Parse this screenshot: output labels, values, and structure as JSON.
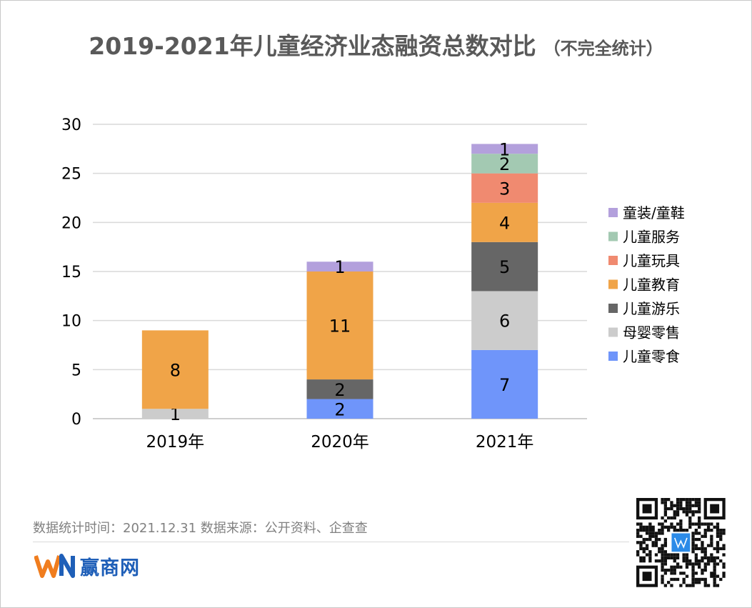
{
  "title": {
    "main": "2019-2021年儿童经济业态融资总数对比",
    "sub": "（不完全统计）"
  },
  "chart_data": {
    "type": "bar",
    "stacked": true,
    "categories": [
      "2019年",
      "2020年",
      "2021年"
    ],
    "ylim": [
      0,
      30
    ],
    "yticks": [
      0,
      5,
      10,
      15,
      20,
      25,
      30
    ],
    "grid": true,
    "legend_position": "right",
    "series": [
      {
        "name": "儿童零食",
        "color": "#6f95fa",
        "values": [
          0,
          2,
          7
        ]
      },
      {
        "name": "母婴零售",
        "color": "#cccccc",
        "values": [
          1,
          0,
          6
        ]
      },
      {
        "name": "儿童游乐",
        "color": "#666666",
        "values": [
          0,
          2,
          5
        ]
      },
      {
        "name": "儿童教育",
        "color": "#f0a448",
        "values": [
          8,
          11,
          4
        ]
      },
      {
        "name": "儿童玩具",
        "color": "#f08a70",
        "values": [
          0,
          0,
          3
        ]
      },
      {
        "name": "儿童服务",
        "color": "#a3c9b2",
        "values": [
          0,
          0,
          2
        ]
      },
      {
        "name": "童装/童鞋",
        "color": "#b3a0dc",
        "values": [
          0,
          1,
          1
        ]
      }
    ]
  },
  "footer": {
    "note": "数据统计时间：2021.12.31  数据来源：公开资料、企查查",
    "brand_name": "赢商网",
    "brand_logo_text": "WIN"
  },
  "colors": {
    "brand_orange": "#f07d1e",
    "brand_blue": "#1f5fb8",
    "title_gray": "#595959"
  }
}
